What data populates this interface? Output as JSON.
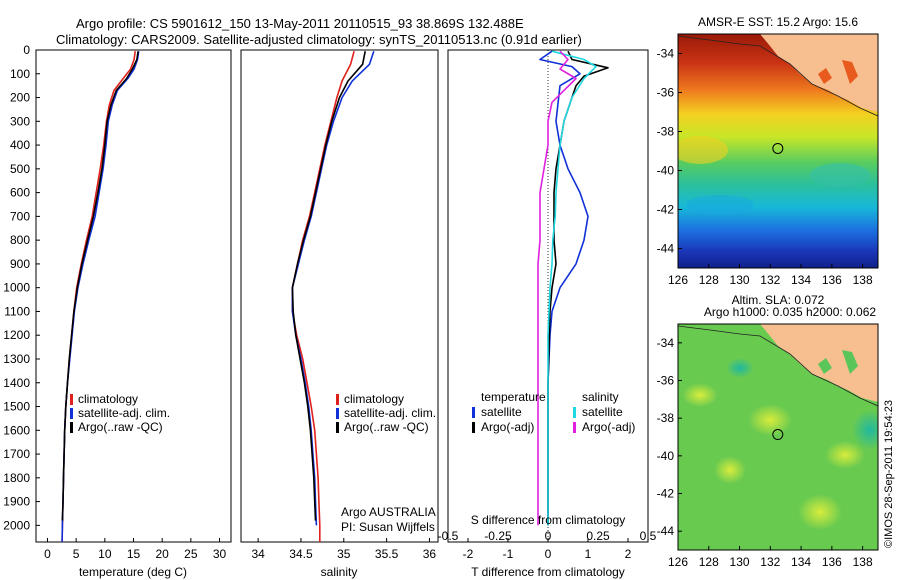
{
  "header": {
    "line1": "Argo profile: CS 5901612_150 13-May-2011 20110515_93 38.869S 132.488E",
    "line2": "Climatology: CARS2009. Satellite-adjusted climatology: synTS_20110513.nc (0.91d earlier)"
  },
  "colors": {
    "climatology": "#e0201b",
    "satellite": "#1030d8",
    "argo": "#000000",
    "cyan": "#20d8e0",
    "magenta": "#e020e0",
    "land": "#f7bf90"
  },
  "chart_data": [
    {
      "type": "line",
      "title": "",
      "xlabel": "temperature (deg C)",
      "ylabel": "",
      "xlim": [
        -2,
        32
      ],
      "ylim": [
        2070,
        0
      ],
      "xticks": [
        "0",
        "5",
        "10",
        "15",
        "20",
        "25",
        "30"
      ],
      "yticks": [
        "0",
        "100",
        "200",
        "300",
        "400",
        "500",
        "600",
        "700",
        "800",
        "900",
        "1000",
        "1100",
        "1200",
        "1300",
        "1400",
        "1500",
        "1600",
        "1700",
        "1800",
        "1900",
        "2000"
      ],
      "legend": [
        "climatology",
        "satellite-adj. clim.",
        "Argo(..raw -QC)"
      ],
      "series": [
        {
          "name": "climatology",
          "color": "#e0201b",
          "points": [
            [
              15.3,
              5
            ],
            [
              15.1,
              40
            ],
            [
              14.5,
              80
            ],
            [
              13.2,
              120
            ],
            [
              11.6,
              170
            ],
            [
              10.8,
              230
            ],
            [
              10.3,
              300
            ],
            [
              9.8,
              400
            ],
            [
              9.2,
              500
            ],
            [
              8.5,
              600
            ],
            [
              7.8,
              700
            ],
            [
              6.8,
              800
            ],
            [
              5.9,
              900
            ],
            [
              5.1,
              1000
            ],
            [
              4.6,
              1100
            ],
            [
              4.2,
              1200
            ],
            [
              3.8,
              1300
            ],
            [
              3.5,
              1400
            ],
            [
              3.2,
              1500
            ],
            [
              3.0,
              1600
            ],
            [
              2.9,
              1700
            ],
            [
              2.8,
              1800
            ],
            [
              2.7,
              1900
            ],
            [
              2.6,
              2000
            ],
            [
              2.55,
              2070
            ]
          ]
        },
        {
          "name": "satellite-adj. clim.",
          "color": "#1030d8",
          "points": [
            [
              15.9,
              5
            ],
            [
              15.7,
              40
            ],
            [
              15.1,
              80
            ],
            [
              14.0,
              120
            ],
            [
              12.2,
              170
            ],
            [
              11.3,
              230
            ],
            [
              10.6,
              300
            ],
            [
              10.2,
              400
            ],
            [
              9.7,
              500
            ],
            [
              9.0,
              600
            ],
            [
              8.3,
              700
            ],
            [
              7.2,
              800
            ],
            [
              6.2,
              900
            ],
            [
              5.3,
              1000
            ],
            [
              4.7,
              1100
            ],
            [
              4.3,
              1200
            ],
            [
              3.9,
              1300
            ],
            [
              3.5,
              1400
            ],
            [
              3.2,
              1500
            ],
            [
              3.0,
              1600
            ],
            [
              2.9,
              1700
            ],
            [
              2.8,
              1800
            ],
            [
              2.7,
              1900
            ],
            [
              2.6,
              2000
            ],
            [
              2.55,
              2070
            ]
          ]
        },
        {
          "name": "Argo(..raw -QC)",
          "color": "#000000",
          "points": [
            [
              15.8,
              5
            ],
            [
              15.6,
              40
            ],
            [
              14.8,
              80
            ],
            [
              13.8,
              120
            ],
            [
              12.0,
              170
            ],
            [
              11.1,
              230
            ],
            [
              10.4,
              300
            ],
            [
              10.0,
              400
            ],
            [
              9.5,
              500
            ],
            [
              8.8,
              600
            ],
            [
              8.0,
              700
            ],
            [
              7.0,
              800
            ],
            [
              6.0,
              900
            ],
            [
              5.2,
              1000
            ],
            [
              4.6,
              1100
            ],
            [
              4.2,
              1200
            ],
            [
              3.8,
              1300
            ],
            [
              3.5,
              1400
            ],
            [
              3.2,
              1500
            ],
            [
              3.0,
              1600
            ],
            [
              2.9,
              1700
            ],
            [
              2.8,
              1800
            ],
            [
              2.7,
              1900
            ],
            [
              2.6,
              1980
            ]
          ]
        }
      ]
    },
    {
      "type": "line",
      "title": "",
      "xlabel": "salinity",
      "ylabel": "",
      "xlim": [
        33.8,
        36.1
      ],
      "ylim": [
        2070,
        0
      ],
      "xticks": [
        "34",
        "34.5",
        "35",
        "35.5",
        "36"
      ],
      "legend": [
        "climatology",
        "satellite-adj. clim.",
        "Argo(..raw -QC)"
      ],
      "annotation": [
        "Argo AUSTRALIA",
        "PI: Susan Wijffels"
      ],
      "series": [
        {
          "name": "climatology",
          "color": "#e0201b",
          "points": [
            [
              35.12,
              5
            ],
            [
              35.08,
              60
            ],
            [
              34.98,
              130
            ],
            [
              34.92,
              200
            ],
            [
              34.85,
              300
            ],
            [
              34.78,
              400
            ],
            [
              34.72,
              500
            ],
            [
              34.66,
              600
            ],
            [
              34.6,
              700
            ],
            [
              34.52,
              800
            ],
            [
              34.46,
              900
            ],
            [
              34.4,
              1000
            ],
            [
              34.4,
              1100
            ],
            [
              34.45,
              1200
            ],
            [
              34.52,
              1300
            ],
            [
              34.57,
              1400
            ],
            [
              34.62,
              1500
            ],
            [
              34.66,
              1600
            ],
            [
              34.68,
              1700
            ],
            [
              34.7,
              1800
            ],
            [
              34.71,
              1900
            ],
            [
              34.72,
              2000
            ],
            [
              34.72,
              2070
            ]
          ]
        },
        {
          "name": "satellite-adj. clim.",
          "color": "#1030d8",
          "points": [
            [
              35.35,
              5
            ],
            [
              35.3,
              60
            ],
            [
              35.1,
              130
            ],
            [
              34.98,
              200
            ],
            [
              34.88,
              300
            ],
            [
              34.8,
              400
            ],
            [
              34.74,
              500
            ],
            [
              34.68,
              600
            ],
            [
              34.62,
              700
            ],
            [
              34.54,
              800
            ],
            [
              34.47,
              900
            ],
            [
              34.4,
              1000
            ],
            [
              34.4,
              1100
            ],
            [
              34.44,
              1200
            ],
            [
              34.5,
              1300
            ],
            [
              34.55,
              1400
            ],
            [
              34.59,
              1500
            ],
            [
              34.62,
              1600
            ],
            [
              34.64,
              1700
            ],
            [
              34.66,
              1800
            ],
            [
              34.67,
              1900
            ],
            [
              34.68,
              2000
            ]
          ]
        },
        {
          "name": "Argo(..raw -QC)",
          "color": "#000000",
          "points": [
            [
              35.25,
              5
            ],
            [
              35.22,
              60
            ],
            [
              35.05,
              130
            ],
            [
              34.95,
              200
            ],
            [
              34.86,
              300
            ],
            [
              34.79,
              400
            ],
            [
              34.73,
              500
            ],
            [
              34.67,
              600
            ],
            [
              34.61,
              700
            ],
            [
              34.53,
              800
            ],
            [
              34.46,
              900
            ],
            [
              34.4,
              1000
            ],
            [
              34.41,
              1100
            ],
            [
              34.44,
              1200
            ],
            [
              34.49,
              1300
            ],
            [
              34.54,
              1400
            ],
            [
              34.58,
              1500
            ],
            [
              34.61,
              1600
            ],
            [
              34.63,
              1700
            ],
            [
              34.65,
              1800
            ],
            [
              34.66,
              1900
            ],
            [
              34.67,
              1980
            ]
          ]
        }
      ]
    },
    {
      "type": "line",
      "title": "",
      "xlabel": "T difference from climatology",
      "xlabel_top": "S difference from climatology",
      "xlim": [
        -2.5,
        2.5
      ],
      "ylim": [
        2070,
        0
      ],
      "xticks": [
        "-2",
        "-1",
        "0",
        "1",
        "2"
      ],
      "xticks_top": [
        "-0.5",
        "-0.25",
        "0",
        "0.25",
        "0.5"
      ],
      "legend_titles": [
        "temperature",
        "salinity"
      ],
      "legend": [
        "satellite",
        "Argo(-adj)",
        "satellite",
        "Argo(-adj)"
      ],
      "series": [
        {
          "name": "satellite",
          "color": "#1030d8",
          "points": [
            [
              0.1,
              5
            ],
            [
              -0.2,
              40
            ],
            [
              0.6,
              70
            ],
            [
              0.8,
              100
            ],
            [
              0.3,
              150
            ],
            [
              0.2,
              300
            ],
            [
              0.3,
              400
            ],
            [
              0.5,
              500
            ],
            [
              0.8,
              600
            ],
            [
              1.0,
              700
            ],
            [
              0.9,
              800
            ],
            [
              0.7,
              900
            ],
            [
              0.3,
              1000
            ],
            [
              0.1,
              1100
            ],
            [
              0.05,
              1200
            ],
            [
              0.0,
              1400
            ],
            [
              0.0,
              1700
            ],
            [
              0.0,
              2000
            ]
          ]
        },
        {
          "name": "Argo(-adj)",
          "color": "#000000",
          "points": [
            [
              0.5,
              5
            ],
            [
              0.6,
              40
            ],
            [
              1.5,
              75
            ],
            [
              0.9,
              110
            ],
            [
              0.7,
              150
            ],
            [
              0.6,
              200
            ],
            [
              0.4,
              300
            ],
            [
              0.3,
              400
            ],
            [
              0.2,
              500
            ],
            [
              0.15,
              600
            ],
            [
              0.15,
              700
            ],
            [
              0.15,
              800
            ],
            [
              0.2,
              900
            ],
            [
              0.1,
              1000
            ],
            [
              0.05,
              1100
            ],
            [
              0.0,
              1400
            ],
            [
              0.0,
              1700
            ],
            [
              0.0,
              2000
            ]
          ]
        },
        {
          "name": "satellite",
          "color": "#20d8e0",
          "points": [
            [
              0.1,
              5
            ],
            [
              0.9,
              40
            ],
            [
              1.2,
              70
            ],
            [
              0.9,
              120
            ],
            [
              0.6,
              200
            ],
            [
              0.4,
              300
            ],
            [
              0.3,
              400
            ],
            [
              0.25,
              500
            ],
            [
              0.2,
              600
            ],
            [
              0.18,
              700
            ],
            [
              0.12,
              800
            ],
            [
              0.1,
              900
            ],
            [
              0.05,
              1000
            ],
            [
              0.0,
              1200
            ],
            [
              0.0,
              1600
            ],
            [
              0.0,
              2000
            ]
          ]
        },
        {
          "name": "Argo(-adj)",
          "color": "#e020e0",
          "points": [
            [
              0.3,
              5
            ],
            [
              0.5,
              40
            ],
            [
              0.3,
              80
            ],
            [
              0.7,
              120
            ],
            [
              0.4,
              170
            ],
            [
              0.1,
              220
            ],
            [
              0.0,
              300
            ],
            [
              0.0,
              400
            ],
            [
              -0.1,
              500
            ],
            [
              -0.2,
              600
            ],
            [
              -0.2,
              700
            ],
            [
              -0.2,
              800
            ],
            [
              -0.25,
              900
            ],
            [
              -0.25,
              1000
            ],
            [
              -0.25,
              1200
            ],
            [
              -0.25,
              1400
            ],
            [
              -0.25,
              1600
            ],
            [
              -0.25,
              1800
            ],
            [
              -0.25,
              2000
            ]
          ]
        }
      ]
    },
    {
      "type": "heatmap",
      "title": "AMSR-E SST: 15.2 Argo: 15.6",
      "xlim": [
        126,
        139
      ],
      "ylim": [
        -45,
        -33
      ],
      "xticks": [
        "126",
        "128",
        "130",
        "132",
        "134",
        "136",
        "138"
      ],
      "yticks": [
        "-34",
        "-36",
        "-38",
        "-40",
        "-42",
        "-44"
      ],
      "marker": {
        "lon": 132.488,
        "lat": -38.869
      }
    },
    {
      "type": "heatmap",
      "title": "Altim. SLA: 0.072",
      "subtitle": "Argo h1000: 0.035 h2000: 0.062",
      "xlim": [
        126,
        139
      ],
      "ylim": [
        -45,
        -33
      ],
      "xticks": [
        "126",
        "128",
        "130",
        "132",
        "134",
        "136",
        "138"
      ],
      "yticks": [
        "-34",
        "-36",
        "-38",
        "-40",
        "-42",
        "-44"
      ],
      "marker": {
        "lon": 132.488,
        "lat": -38.869
      }
    }
  ],
  "credit": "©IMOS 28-Sep-2011 19:54:23"
}
